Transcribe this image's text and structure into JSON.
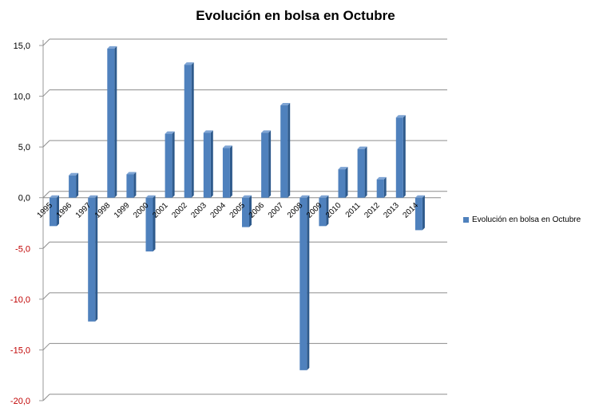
{
  "chart_data": {
    "type": "bar",
    "title": "Evolución en bolsa en Octubre",
    "categories": [
      "1995",
      "1996",
      "1997",
      "1998",
      "1999",
      "2000",
      "2001",
      "2002",
      "2003",
      "2004",
      "2005",
      "2006",
      "2007",
      "2008",
      "2009",
      "2010",
      "2011",
      "2012",
      "2013",
      "2014"
    ],
    "series": [
      {
        "name": "Evolución en bolsa en Octubre",
        "values": [
          -2.8,
          2.2,
          -12.2,
          14.7,
          2.3,
          -5.3,
          6.3,
          13.1,
          6.4,
          4.9,
          -2.9,
          6.4,
          9.1,
          -17.0,
          -2.8,
          2.8,
          4.8,
          1.8,
          7.9,
          -3.2
        ],
        "color": "#4f81bd"
      }
    ],
    "ylim": [
      -20,
      15
    ],
    "yticks": [
      "15,0",
      "10,0",
      "5,0",
      "0,0",
      "-5,0",
      "-10,0",
      "-15,0",
      "-20,0"
    ],
    "ytick_values": [
      15,
      10,
      5,
      0,
      -5,
      -10,
      -15,
      -20
    ],
    "negative_tick_color": "#c00000",
    "grid": true,
    "legend_position": "right"
  }
}
